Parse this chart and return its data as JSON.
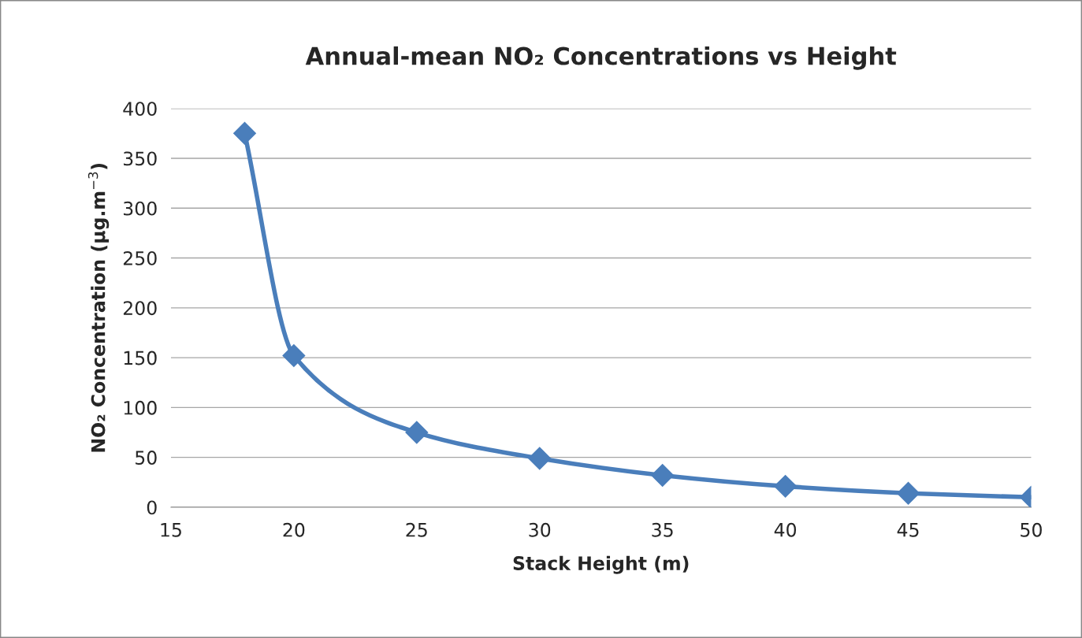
{
  "chart_data": {
    "type": "line",
    "title": "Annual-mean NO₂ Concentrations vs Height",
    "xlabel": "Stack Height (m)",
    "ylabel": "NO₂ Concentration (µg.m$^{−3}$)",
    "x": [
      18,
      20,
      25,
      30,
      35,
      40,
      45,
      50
    ],
    "series": [
      {
        "color": "#4a7ebb",
        "values": [
          375,
          152,
          75,
          49,
          32,
          21,
          14,
          10
        ]
      }
    ],
    "xlim": [
      15,
      50
    ],
    "xticks": [
      15,
      20,
      25,
      30,
      35,
      40,
      45,
      50
    ],
    "ylim": [
      0,
      400
    ],
    "yticks": [
      0,
      50,
      100,
      150,
      200,
      250,
      300,
      350,
      400
    ],
    "grid": "y",
    "marker": "diamond",
    "line_style": "solid",
    "legend": false
  }
}
